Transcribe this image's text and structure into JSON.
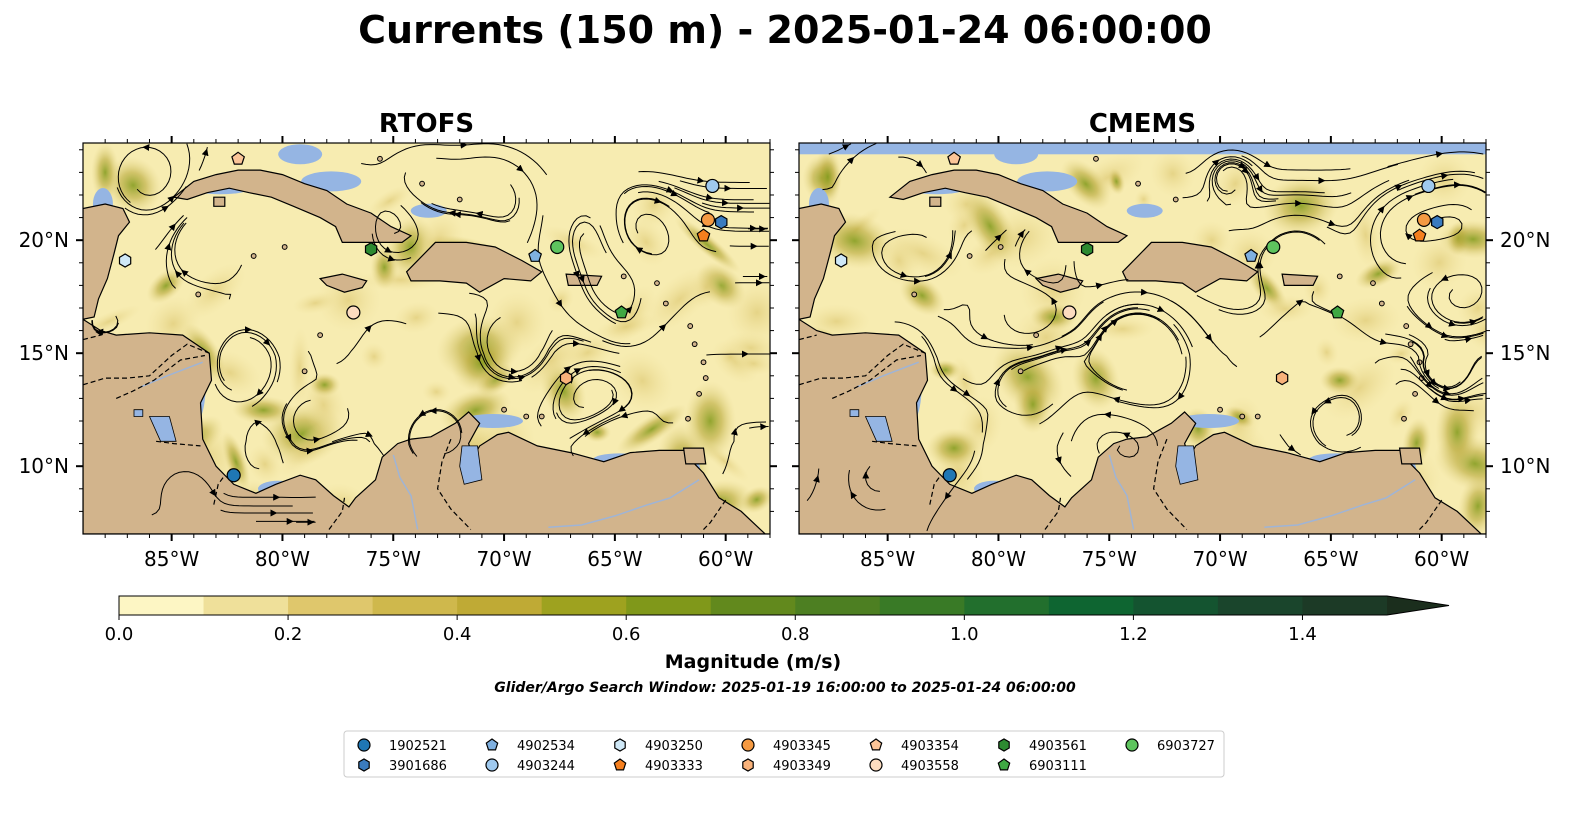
{
  "title": "Currents (150 m) - 2025-01-24 06:00:00",
  "panels": [
    {
      "title": "RTOFS"
    },
    {
      "title": "CMEMS"
    }
  ],
  "axes": {
    "xlim": [
      -89,
      -58
    ],
    "ylim": [
      7,
      24.3
    ],
    "xticks": [
      -85,
      -80,
      -75,
      -70,
      -65,
      -60
    ],
    "xtick_labels": [
      "85°W",
      "80°W",
      "75°W",
      "70°W",
      "65°W",
      "60°W"
    ],
    "yticks": [
      10,
      15,
      20
    ],
    "ytick_labels": [
      "10°N",
      "15°N",
      "20°N"
    ]
  },
  "colorbar": {
    "label": "Magnitude (m/s)",
    "min": 0.0,
    "max": 1.5,
    "step": 0.1,
    "extend": "max",
    "ticks": [
      0.0,
      0.2,
      0.4,
      0.6,
      0.8,
      1.0,
      1.2,
      1.4
    ],
    "tick_labels": [
      "0.0",
      "0.2",
      "0.4",
      "0.6",
      "0.8",
      "1.0",
      "1.2",
      "1.4"
    ],
    "colors": [
      "#fdf6c4",
      "#efe09a",
      "#dfc76c",
      "#cfb84c",
      "#bfaa35",
      "#9ea21f",
      "#80981a",
      "#62891d",
      "#4d7f22",
      "#397a26",
      "#226f2d",
      "#0e6531",
      "#145430",
      "#1a452c",
      "#1c3a26"
    ],
    "extend_color": "#1b2e1d"
  },
  "note": "Glider/Argo Search Window: 2025-01-19 16:00:00 to 2025-01-24 06:00:00",
  "colors": {
    "land": "#d2b48c",
    "ocean": "#95b5e3",
    "river": "#9fb4d6"
  },
  "chart_data": {
    "type": "map",
    "title": "Currents (150 m) - 2025-01-24 06:00:00",
    "subplots": [
      "RTOFS",
      "CMEMS"
    ],
    "xlim": [
      -89,
      -58
    ],
    "ylim": [
      7,
      24.3
    ],
    "colorbar_label": "Magnitude (m/s)",
    "colorbar_range": [
      0.0,
      1.5
    ],
    "series": [
      {
        "name": "1902521",
        "marker": "circle",
        "color": "#1f77b4",
        "points": [
          [
            -82.2,
            9.6
          ]
        ]
      },
      {
        "name": "3901686",
        "marker": "hexagon",
        "color": "#3a7bbf",
        "points": [
          [
            -60.2,
            20.8
          ]
        ]
      },
      {
        "name": "4902534",
        "marker": "pentagon",
        "color": "#7fb0e0",
        "points": [
          [
            -68.6,
            19.3
          ]
        ]
      },
      {
        "name": "4903244",
        "marker": "circle",
        "color": "#9fc9ee",
        "points": [
          [
            -60.6,
            22.4
          ]
        ]
      },
      {
        "name": "4903250",
        "marker": "hexagon",
        "color": "#cfe8f7",
        "points": [
          [
            -87.1,
            19.1
          ]
        ]
      },
      {
        "name": "4903333",
        "marker": "pentagon",
        "color": "#f57f1e",
        "points": [
          [
            -61.0,
            20.2
          ]
        ]
      },
      {
        "name": "4903345",
        "marker": "circle",
        "color": "#f59a42",
        "points": [
          [
            -60.8,
            20.9
          ]
        ]
      },
      {
        "name": "4903349",
        "marker": "hexagon",
        "color": "#f9b27a",
        "points": [
          [
            -67.2,
            13.9
          ]
        ]
      },
      {
        "name": "4903354",
        "marker": "pentagon",
        "color": "#fbc598",
        "points": [
          [
            -82.0,
            23.6
          ]
        ]
      },
      {
        "name": "4903558",
        "marker": "circle",
        "color": "#fcdcc0",
        "points": [
          [
            -76.8,
            16.8
          ]
        ]
      },
      {
        "name": "4903561",
        "marker": "hexagon",
        "color": "#2d8a31",
        "points": [
          [
            -76.0,
            19.6
          ]
        ]
      },
      {
        "name": "6903111",
        "marker": "pentagon",
        "color": "#3fa843",
        "points": [
          [
            -64.7,
            16.8
          ]
        ]
      },
      {
        "name": "6903727",
        "marker": "circle",
        "color": "#5ec45e",
        "points": [
          [
            -67.6,
            19.7
          ]
        ]
      }
    ]
  }
}
